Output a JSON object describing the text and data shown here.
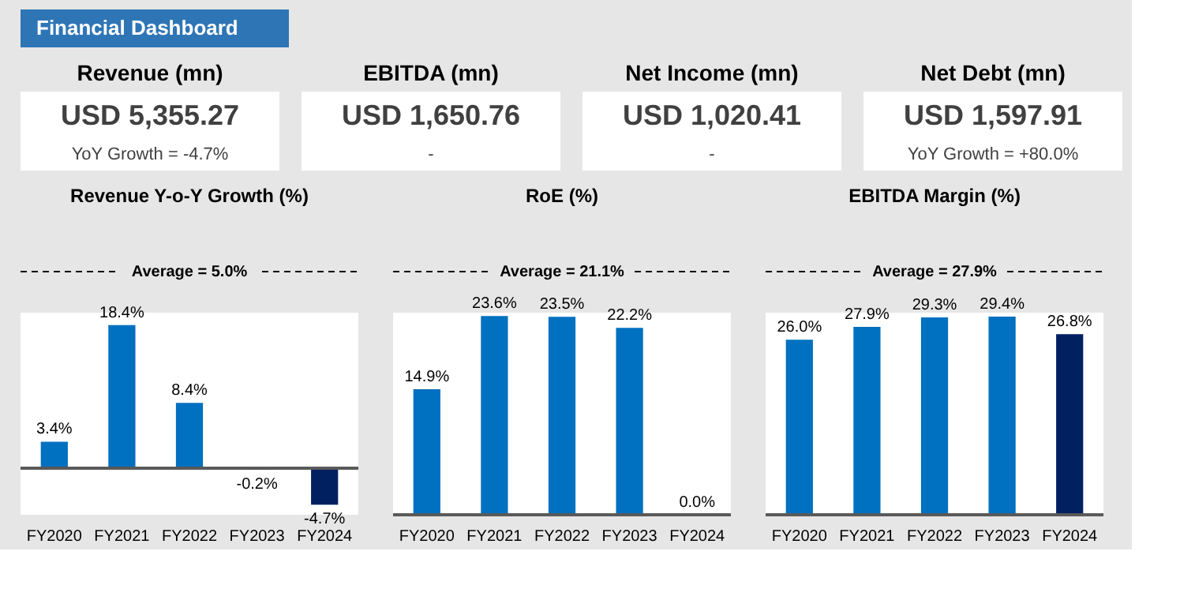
{
  "chart_data": [
    {
      "type": "other",
      "title": "Financial Dashboard"
    },
    {
      "type": "other",
      "title": "Revenue (mn)",
      "annotations": [
        "USD 5,355.27",
        "YoY Growth = -4.7%"
      ]
    },
    {
      "type": "other",
      "title": "EBITDA (mn)",
      "annotations": [
        "USD 1,650.76",
        "-"
      ]
    },
    {
      "type": "other",
      "title": "Net Income (mn)",
      "annotations": [
        "USD 1,020.41",
        "-"
      ]
    },
    {
      "type": "other",
      "title": "Net Debt (mn)",
      "annotations": [
        "USD 1,597.91",
        "YoY Growth = +80.0%"
      ]
    },
    {
      "type": "bar",
      "title": "Revenue Y-o-Y Growth (%)",
      "categories": [
        "FY2020",
        "FY2021",
        "FY2022",
        "FY2023",
        "FY2024"
      ],
      "values": [
        3.4,
        18.4,
        8.4,
        -0.2,
        -4.7
      ],
      "value_labels": [
        "3.4%",
        "18.4%",
        "8.4%",
        "-0.2%",
        "-4.7%"
      ],
      "colors": [
        "#0070c0",
        "#0070c0",
        "#0070c0",
        "#0070c0",
        "#002060"
      ],
      "annotations": [
        "Average = 5.0%"
      ],
      "tick_labels": "x",
      "grid": false
    },
    {
      "type": "bar",
      "title": "RoE (%)",
      "categories": [
        "FY2020",
        "FY2021",
        "FY2022",
        "FY2023",
        "FY2024"
      ],
      "values": [
        14.9,
        23.6,
        23.5,
        22.2,
        0.0
      ],
      "value_labels": [
        "14.9%",
        "23.6%",
        "23.5%",
        "22.2%",
        "0.0%"
      ],
      "colors": [
        "#0070c0",
        "#0070c0",
        "#0070c0",
        "#0070c0",
        "#0070c0"
      ],
      "annotations": [
        "Average = 21.1%"
      ],
      "tick_labels": "x",
      "grid": false
    },
    {
      "type": "bar",
      "title": "EBITDA Margin (%)",
      "categories": [
        "FY2020",
        "FY2021",
        "FY2022",
        "FY2023",
        "FY2024"
      ],
      "values": [
        26.0,
        27.9,
        29.3,
        29.4,
        26.8
      ],
      "value_labels": [
        "26.0%",
        "27.9%",
        "29.3%",
        "29.4%",
        "26.8%"
      ],
      "colors": [
        "#0070c0",
        "#0070c0",
        "#0070c0",
        "#0070c0",
        "#002060"
      ],
      "annotations": [
        "Average = 27.9%"
      ],
      "tick_labels": "x",
      "grid": false
    }
  ]
}
